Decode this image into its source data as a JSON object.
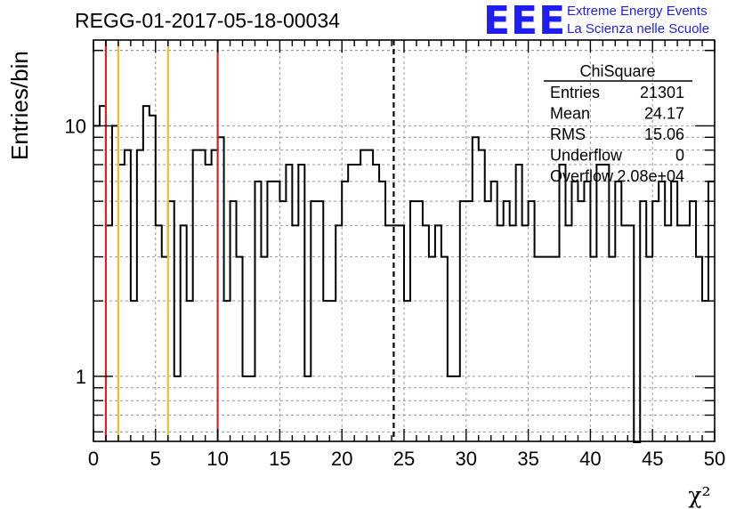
{
  "title": "REGG-01-2017-05-18-00034",
  "logo": {
    "text": "EEE",
    "line1": "Extreme Energy Events",
    "line2": "La Scienza nelle Scuole",
    "color": "#1e1ef0"
  },
  "stats": {
    "title": "ChiSquare",
    "rows": [
      {
        "label": "Entries",
        "value": "21301"
      },
      {
        "label": "Mean",
        "value": "24.17"
      },
      {
        "label": "RMS",
        "value": "15.06"
      },
      {
        "label": "Underflow",
        "value": "0"
      },
      {
        "label": "Overflow",
        "value": "2.08e+04"
      }
    ]
  },
  "chart_data": {
    "type": "histogram",
    "ylabel": "Entries/bin",
    "xlabel": "χ²",
    "xlim": [
      0,
      50
    ],
    "ylim": [
      0.55,
      22
    ],
    "yscale": "log",
    "grid": true,
    "x_ticks": [
      0,
      5,
      10,
      15,
      20,
      25,
      30,
      35,
      40,
      45,
      50
    ],
    "y_tick_labels": [
      {
        "value": 1,
        "label": "1"
      },
      {
        "value": 10,
        "label": "10"
      }
    ],
    "bin_width": 0.5,
    "bin_counts": [
      10,
      12,
      4,
      10,
      7,
      8,
      2,
      8,
      12,
      11,
      4,
      3,
      5,
      1,
      4,
      2,
      8,
      8,
      7,
      8,
      9,
      2,
      5,
      3,
      1,
      1,
      6,
      3,
      6,
      6,
      5,
      7,
      4,
      7,
      1,
      5,
      5,
      2,
      2,
      4,
      6,
      7,
      7,
      8,
      8,
      7,
      6,
      4,
      4,
      4,
      2,
      5,
      5,
      4,
      3,
      4,
      3,
      1,
      1,
      5,
      5,
      9,
      8,
      5,
      6,
      4,
      5,
      4,
      7,
      4,
      5,
      3,
      3,
      3,
      3,
      7,
      4,
      6,
      5,
      6,
      3,
      7,
      7,
      3,
      6,
      4,
      4,
      0,
      5,
      3,
      5,
      6,
      4,
      6,
      4,
      4,
      5,
      3,
      2,
      6
    ],
    "reference_lines": [
      {
        "x": 1,
        "color": "#e02020",
        "style": "solid"
      },
      {
        "x": 2,
        "color": "#f0c020",
        "style": "solid"
      },
      {
        "x": 6,
        "color": "#f0c020",
        "style": "solid"
      },
      {
        "x": 10,
        "color": "#e02020",
        "style": "solid"
      },
      {
        "x": 24.17,
        "color": "#000000",
        "style": "dashed"
      }
    ]
  }
}
